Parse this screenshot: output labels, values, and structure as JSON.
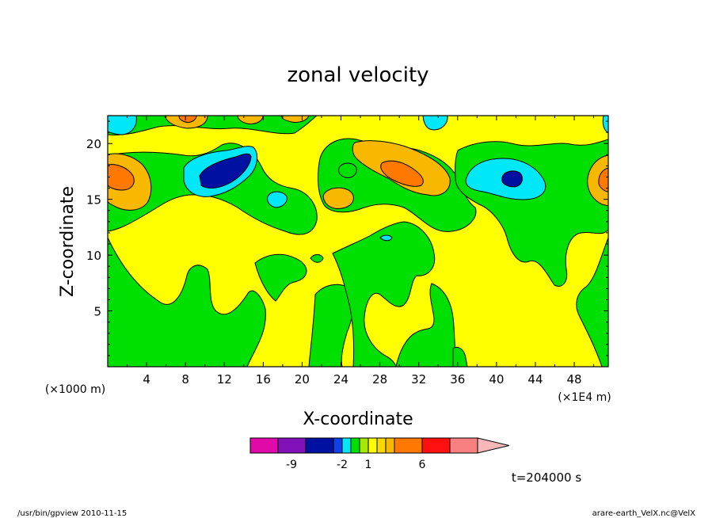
{
  "chart_data": {
    "type": "heatmap",
    "title": "zonal velocity",
    "xlabel": "X-coordinate",
    "ylabel": "Z-coordinate",
    "x_unit": "(×1000 m)",
    "x_scale_note": "(×1E4 m)",
    "x_ticks": [
      "4",
      "8",
      "12",
      "16",
      "20",
      "24",
      "28",
      "32",
      "36",
      "40",
      "44",
      "48"
    ],
    "y_ticks": [
      "5",
      "10",
      "15",
      "20"
    ],
    "xlim": [
      0,
      51.5
    ],
    "ylim": [
      0,
      22.5
    ],
    "colorbar": {
      "tick_labels": [
        "-9",
        "-2",
        "1",
        "6"
      ],
      "colors": [
        "#e00aa8",
        "#8010b8",
        "#0010a0",
        "#1040e8",
        "#00e8f8",
        "#00e000",
        "#a8e800",
        "#ffff00",
        "#f8d800",
        "#f8b800",
        "#ff7800",
        "#ff1010",
        "#f88080",
        "#f8b8b8"
      ]
    },
    "features": [
      {
        "x": 12.5,
        "z": 17.5,
        "value": -7,
        "kind": "min"
      },
      {
        "x": 41.3,
        "z": 17.0,
        "value": -6,
        "kind": "min"
      },
      {
        "x": 30.5,
        "z": 17.5,
        "value": 4,
        "kind": "max"
      },
      {
        "x": 0.5,
        "z": 17.2,
        "value": 4,
        "kind": "max"
      },
      {
        "x": 51.0,
        "z": 17.0,
        "value": 3,
        "kind": "max"
      },
      {
        "x": 8.0,
        "z": 22.0,
        "value": 3,
        "kind": "max"
      },
      {
        "x": 24.0,
        "z": 15.5,
        "value": 2,
        "kind": "max"
      },
      {
        "x": 17.5,
        "z": 15.0,
        "value": -2,
        "kind": "min"
      }
    ]
  },
  "time_label": "t=204000 s",
  "footer_left": "/usr/bin/gpview   2010-11-15",
  "footer_right": "arare-earth_VelX.nc@VelX"
}
